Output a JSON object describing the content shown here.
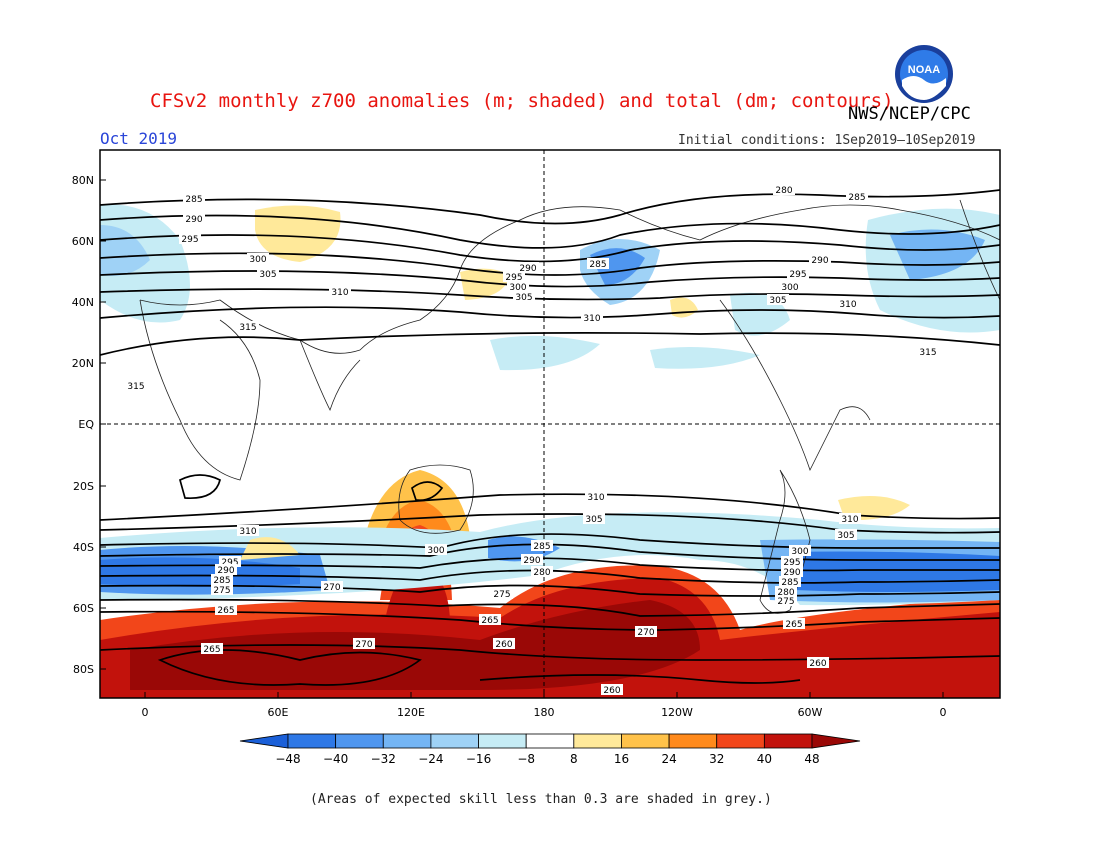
{
  "header": {
    "title": "CFSv2 monthly z700 anomalies (m; shaded) and total (dm; contours)",
    "agency": "NWS/NCEP/CPC",
    "month": "Oct 2019",
    "initial_conditions": "Initial conditions: 1Sep2019–10Sep2019",
    "logo_text": "NOAA"
  },
  "axes": {
    "lat_labels": [
      "80N",
      "60N",
      "40N",
      "20N",
      "EQ",
      "20S",
      "40S",
      "60S",
      "80S"
    ],
    "lon_labels": [
      "0",
      "60E",
      "120E",
      "180",
      "120W",
      "60W",
      "0"
    ]
  },
  "colorbar": {
    "labels": [
      "−48",
      "−40",
      "−32",
      "−24",
      "−16",
      "−8",
      "8",
      "16",
      "24",
      "32",
      "40",
      "48"
    ],
    "colors": [
      "#1a5fd8",
      "#2e78e6",
      "#4f96ef",
      "#74b5f4",
      "#9fd2f6",
      "#c6ecf5",
      "#ffffff",
      "#ffe99a",
      "#ffc24a",
      "#ff8a1c",
      "#f2461a",
      "#c2120c",
      "#9a0806"
    ]
  },
  "contours": {
    "north": [
      "280",
      "285",
      "290",
      "295",
      "300",
      "305",
      "310",
      "315"
    ],
    "south": [
      "310",
      "305",
      "300",
      "295",
      "290",
      "285",
      "280",
      "275",
      "270",
      "265",
      "260"
    ]
  },
  "note": "(Areas of expected skill less than 0.3 are shaded in grey.)"
}
